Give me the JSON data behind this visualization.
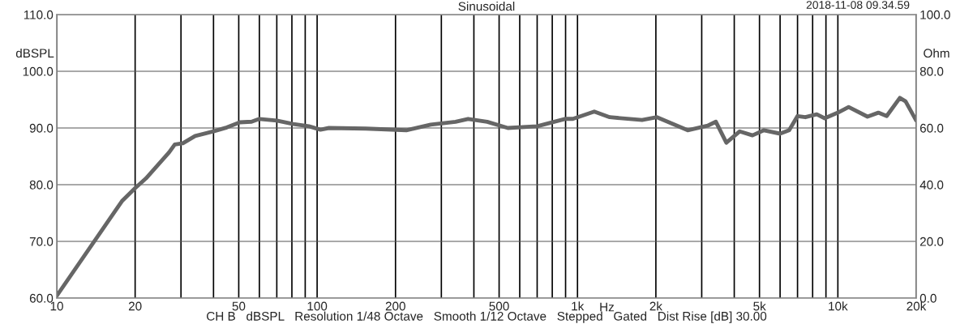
{
  "chart_data": {
    "type": "line",
    "title": "Sinusoidal",
    "subtitle": "2018-11-08 09.34.59",
    "xlabel": "Hz",
    "ylabel": "dBSPL",
    "y2label": "Ohm",
    "annotations": [
      "CH B   dBSPL   Resolution 1/48 Octave   Smooth 1/12 Octave   Stepped   Gated   Dist Rise [dB] 30.00"
    ],
    "log": "x",
    "grid": true,
    "marker": "none",
    "line_style": "solid",
    "xlim": [
      10,
      20000
    ],
    "ylim": [
      60,
      110
    ],
    "y2lim": [
      0,
      100
    ],
    "xticks": [
      10,
      {
        "value": 20,
        "label": "20"
      },
      {
        "value": 30,
        "label": null
      },
      {
        "value": 40,
        "label": null
      },
      50,
      {
        "value": 60,
        "label": null
      },
      {
        "value": 70,
        "label": null
      },
      {
        "value": 80,
        "label": null
      },
      {
        "value": 90,
        "label": null
      },
      100,
      200,
      {
        "value": 300,
        "label": null
      },
      {
        "value": 400,
        "label": null
      },
      500,
      {
        "value": 600,
        "label": null
      },
      {
        "value": 700,
        "label": null
      },
      {
        "value": 800,
        "label": null
      },
      {
        "value": 900,
        "label": null
      },
      {
        "value": 1000,
        "label": "1k"
      },
      {
        "value": 2000,
        "label": "2k"
      },
      {
        "value": 3000,
        "label": null
      },
      {
        "value": 4000,
        "label": null
      },
      {
        "value": 5000,
        "label": "5k"
      },
      {
        "value": 6000,
        "label": null
      },
      {
        "value": 7000,
        "label": null
      },
      {
        "value": 8000,
        "label": null
      },
      {
        "value": 9000,
        "label": null
      },
      {
        "value": 10000,
        "label": "10k"
      },
      {
        "value": 20000,
        "label": "20k"
      }
    ],
    "yticks": [
      {
        "value": 60,
        "label": "60.0"
      },
      {
        "value": 70,
        "label": "70.0"
      },
      {
        "value": 80,
        "label": "80.0"
      },
      {
        "value": 90,
        "label": "90.0"
      },
      {
        "value": 100,
        "label": "100.0"
      },
      {
        "value": 110,
        "label": "110.0"
      }
    ],
    "y2ticks": [
      {
        "value": 0,
        "label": "0.0"
      },
      {
        "value": 20,
        "label": "20.0"
      },
      {
        "value": 40,
        "label": "40.0"
      },
      {
        "value": 60,
        "label": "60.0"
      },
      {
        "value": 80,
        "label": "80.0"
      },
      {
        "value": 100,
        "label": "100.0"
      }
    ],
    "series": [
      {
        "color": "#666666",
        "x": [
          10,
          17.8,
          20,
          22,
          25.5,
          27,
          28.4,
          30.5,
          34,
          40,
          45,
          50.5,
          56,
          60,
          70,
          81,
          93,
          103,
          111,
          154,
          220,
          273,
          340,
          380,
          450,
          540,
          700,
          895,
          960,
          1160,
          1330,
          1770,
          2020,
          2650,
          3160,
          3400,
          3730,
          4200,
          4700,
          5200,
          6000,
          6500,
          7000,
          7500,
          8300,
          8900,
          10000,
          11000,
          13000,
          14300,
          15400,
          17300,
          18200,
          20000
        ],
        "values": [
          60.4,
          77.1,
          79.4,
          81.1,
          84.4,
          85.7,
          87.1,
          87.3,
          88.6,
          89.4,
          90.1,
          91.0,
          91.1,
          91.6,
          91.3,
          90.7,
          90.3,
          89.7,
          90.0,
          89.9,
          89.6,
          90.6,
          91.1,
          91.6,
          91.1,
          90.0,
          90.3,
          91.6,
          91.6,
          92.9,
          91.9,
          91.4,
          91.9,
          89.6,
          90.4,
          91.1,
          87.4,
          89.4,
          88.7,
          89.6,
          89.0,
          89.6,
          92.1,
          91.9,
          92.4,
          91.7,
          92.7,
          93.7,
          92.0,
          92.7,
          92.1,
          95.3,
          94.7,
          91.3
        ]
      }
    ]
  }
}
